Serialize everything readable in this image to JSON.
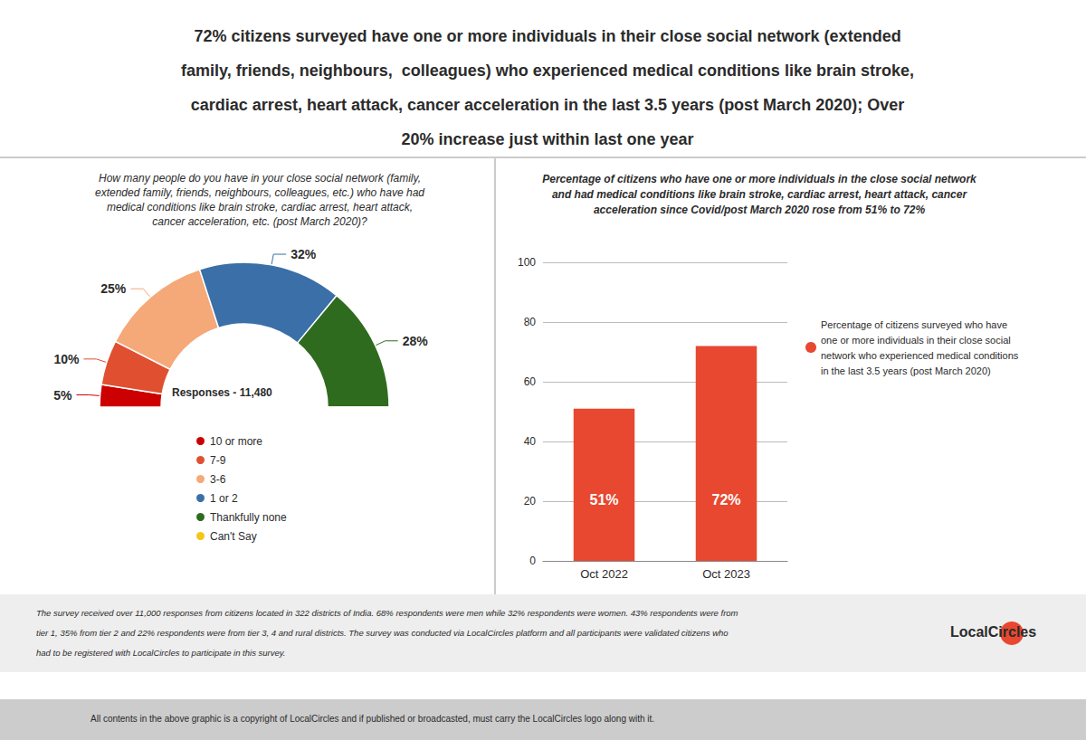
{
  "title": "72% citizens surveyed have one or more individuals in their close social network (extended\nfamily, friends, neighbours,  colleagues) who experienced medical conditions like brain stroke,\ncardiac arrest, heart attack, cancer acceleration in the last 3.5 years (post March 2020); Over\n20% increase just within last one year",
  "annotations": [
    "The survey received over 11,000 responses from citizens located in 322 districts of India. 68% respondents were men while 32% respondents were women. 43% respondents were from\ntier 1, 35% from tier 2 and 22% respondents were from tier 3, 4 and rural districts. The survey was conducted via LocalCircles platform and all participants were validated citizens who\nhad to be registered with LocalCircles to participate in this survey.",
    "All contents in the above graphic is a copyright of LocalCircles and if published or broadcasted, must carry the LocalCircles logo along with it.",
    "LocalCircles"
  ],
  "chart_data": [
    {
      "type": "pie",
      "title": "How many people do you have in your close social network (family,\nextended family, friends, neighbours, colleagues, etc.) who have had\nmedical conditions like brain stroke, cardiac arrest, heart attack,\ncancer acceleration, etc. (post March 2020)?",
      "annotations": [
        "Responses - 11,480"
      ],
      "categories": [
        "10 or more",
        "7-9",
        "3-6",
        "1 or 2",
        "Thankfully none",
        "Can't Say"
      ],
      "values": [
        5,
        10,
        25,
        32,
        28,
        0
      ],
      "value_labels": [
        "5%",
        "10%",
        "25%",
        "32%",
        "28%",
        null
      ],
      "colors": [
        "#cc0000",
        "#e05030",
        "#f5a878",
        "#3a6fa8",
        "#2e6b1e",
        "#f5c518"
      ],
      "data_labels": true,
      "legend": "bottom"
    },
    {
      "type": "bar",
      "title": "Percentage of citizens who have one or more individuals in the close social network\nand had medical conditions like brain stroke, cardiac arrest, heart attack, cancer\nacceleration since Covid/post March 2020 rose from 51% to 72%",
      "categories": [
        "Oct 2022",
        "Oct 2023"
      ],
      "series": [
        {
          "name": "Percentage of citizens surveyed who have\none or more individuals in their close social\nnetwork who experienced medical conditions\nin the last 3.5 years (post March 2020)",
          "color": "#e84830",
          "values": [
            51,
            72
          ],
          "value_labels": [
            "51%",
            "72%"
          ]
        }
      ],
      "data_labels": true,
      "ylim": [
        0,
        100
      ],
      "yticks": [
        0,
        20,
        40,
        60,
        80,
        100
      ],
      "grid": true,
      "legend": "right"
    }
  ]
}
